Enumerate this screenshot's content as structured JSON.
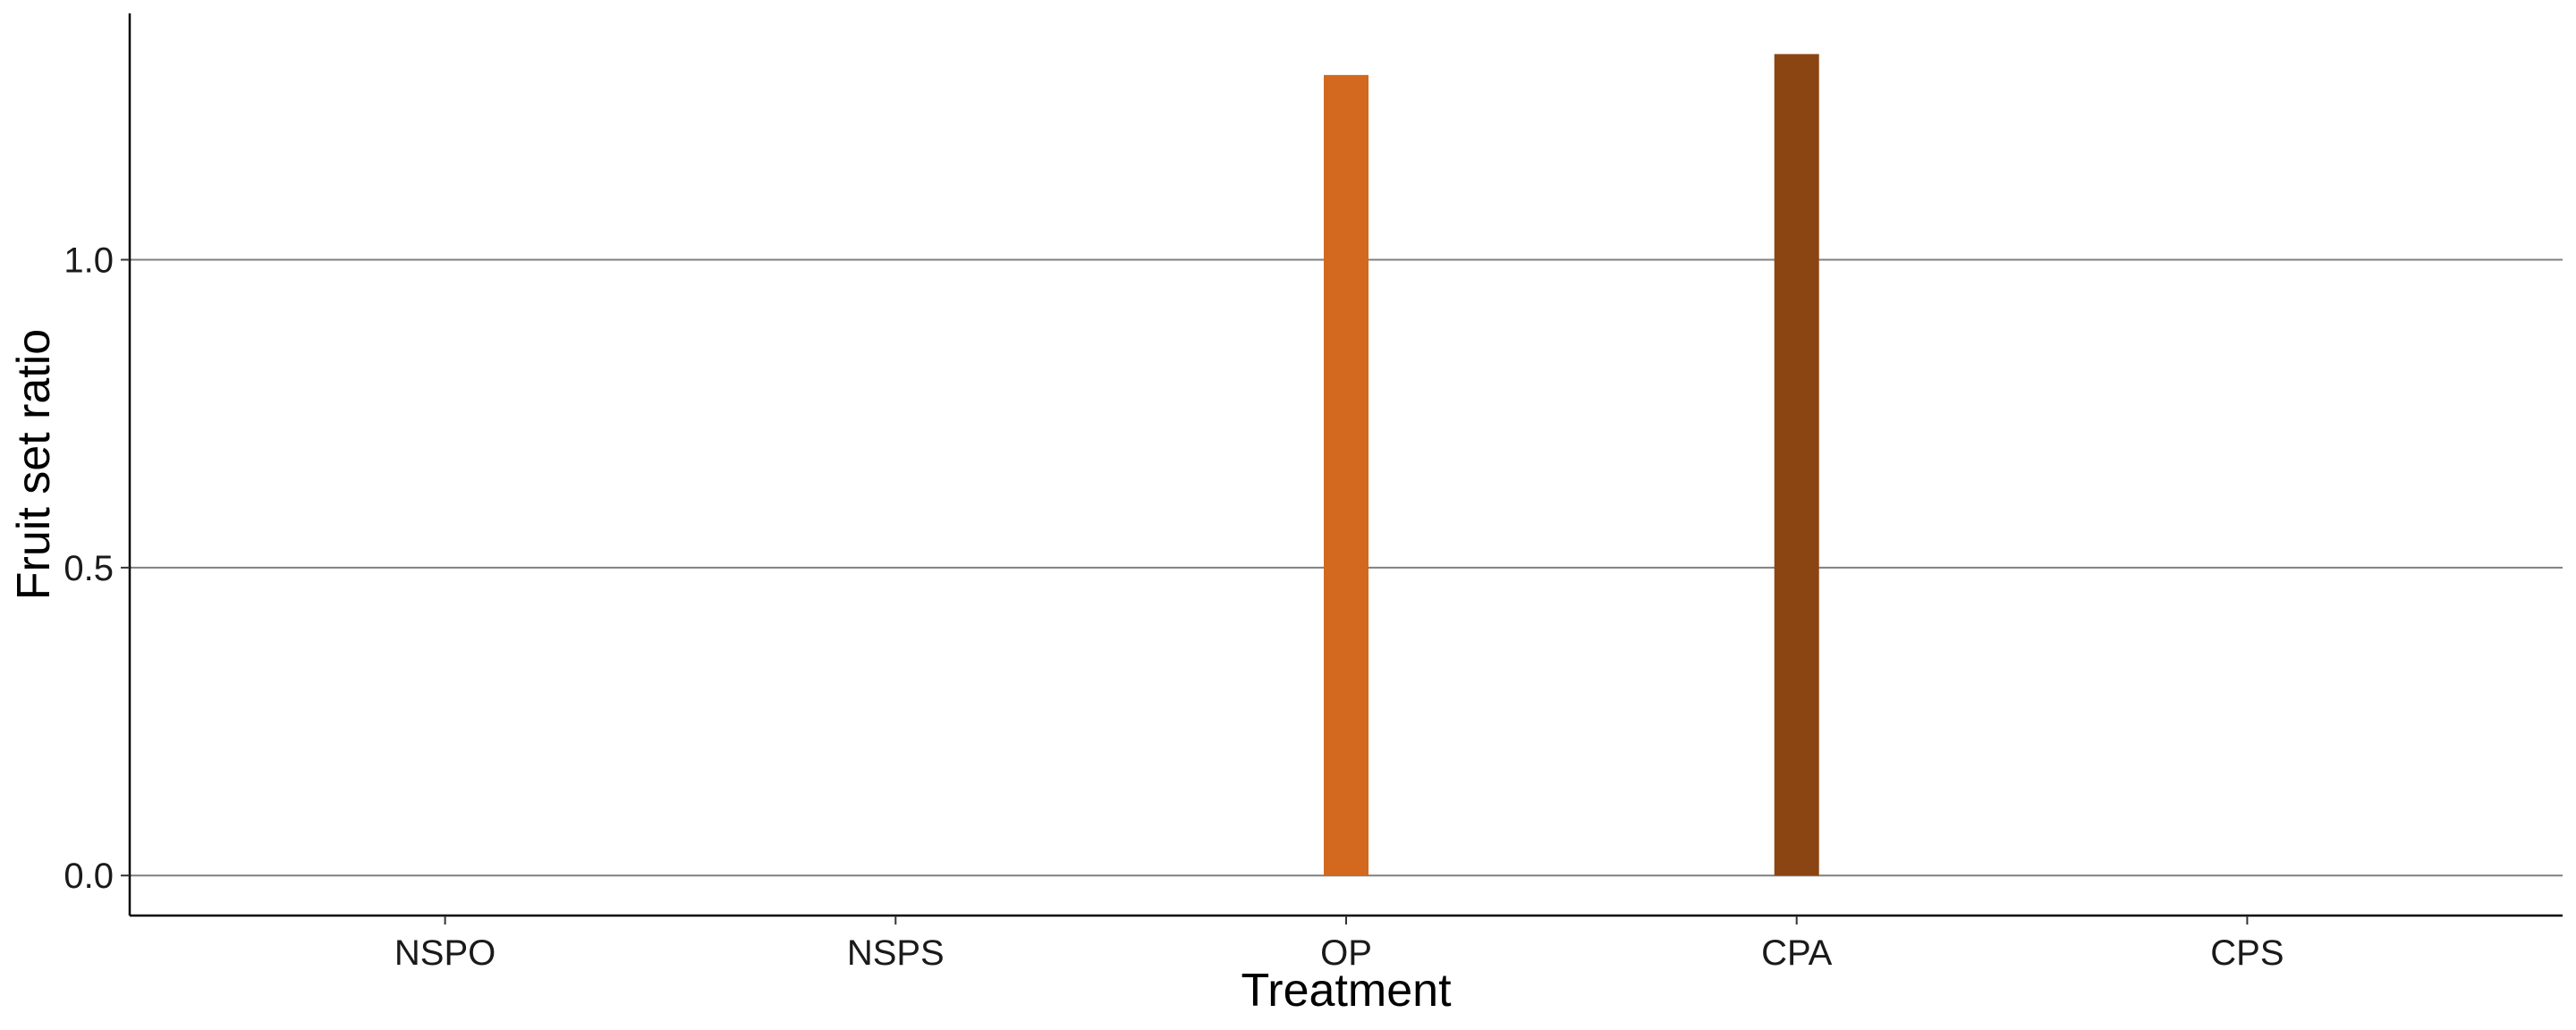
{
  "chart_data": {
    "type": "bar",
    "title": "",
    "xlabel": "Treatment",
    "ylabel": "Fruit set ratio",
    "categories": [
      "NSPO",
      "NSPS",
      "OP",
      "CPA",
      "CPS"
    ],
    "values": [
      0,
      0,
      1.3,
      1.334,
      0
    ],
    "bar_colors": [
      "#D2691E",
      "#D2691E",
      "#D2691E",
      "#8B4513",
      "#8B4513"
    ],
    "ylim": [
      -0.065,
      1.4
    ],
    "yticks": [
      0.0,
      0.5,
      1.0
    ],
    "ytick_labels": [
      "0.0",
      "0.5",
      "1.0"
    ],
    "grid": "horizontal major",
    "grid_color": "#7f7f7f",
    "axis_color": "#000000",
    "legend": "none"
  }
}
